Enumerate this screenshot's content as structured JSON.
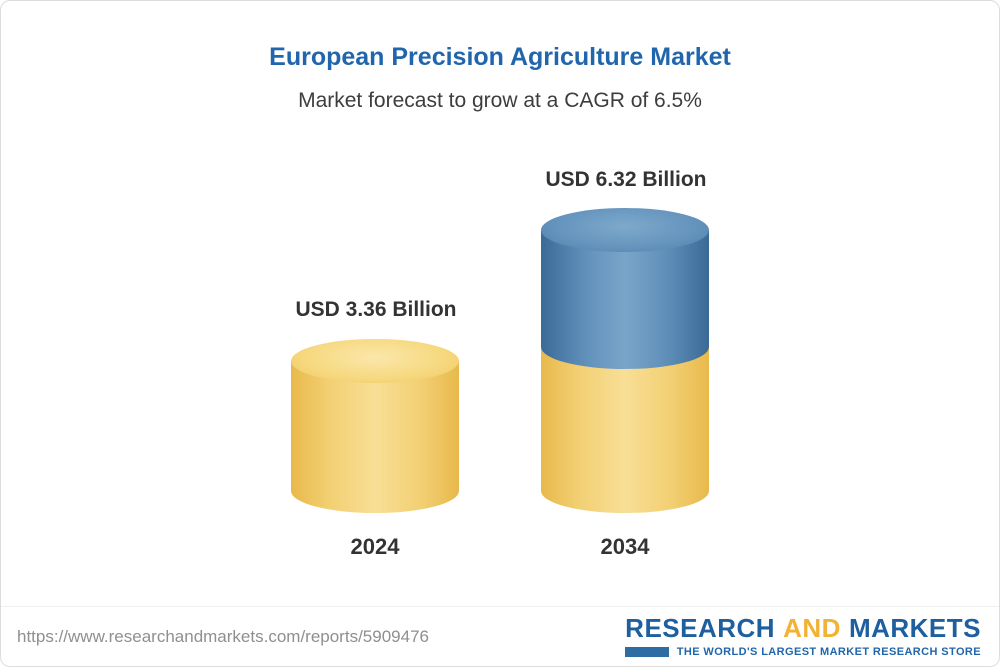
{
  "header": {
    "title": "European Precision Agriculture Market",
    "subtitle": "Market forecast to grow at a CAGR of 6.5%"
  },
  "chart_data": {
    "type": "bar",
    "title": "European Precision Agriculture Market",
    "subtitle": "Market forecast to grow at a CAGR of 6.5%",
    "categories": [
      "2024",
      "2034"
    ],
    "values": [
      3.36,
      6.32
    ],
    "unit": "USD Billion",
    "cagr_pct": 6.5,
    "legend": "none",
    "grid": false,
    "bars": [
      {
        "year": "2024",
        "label": "USD 3.36 Billion",
        "value": 3.36,
        "color": "#f2cf72"
      },
      {
        "year": "2034",
        "label": "USD 6.32 Billion",
        "value": 6.32,
        "color_top": "#5f8fb9",
        "color_bottom": "#f2cf72"
      }
    ],
    "colors": {
      "title_blue": "#2166ad",
      "cylinder_gold": "#f2cf72",
      "cylinder_blue": "#5f8fb9"
    }
  },
  "footer": {
    "url": "https://www.researchandmarkets.com/reports/5909476",
    "logo": {
      "word1": "RESEARCH",
      "word2": "AND",
      "word3": "MARKETS",
      "tagline": "THE WORLD'S LARGEST MARKET RESEARCH STORE",
      "blue": "#1d5f9f",
      "gold": "#f2b234"
    }
  }
}
